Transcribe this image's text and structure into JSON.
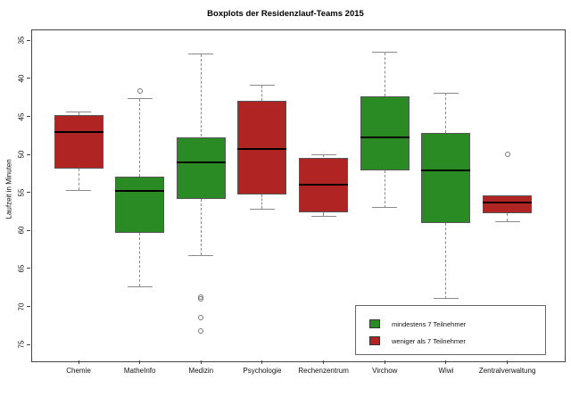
{
  "title": "Boxplots der Residenzlauf-Teams 2015",
  "chart_data": {
    "type": "boxplot",
    "title": "Boxplots der Residenzlauf-Teams 2015",
    "xlabel": "",
    "ylabel": "Laufzeit in Minuten",
    "ylim": [
      35,
      75
    ],
    "y_axis_inverted": true,
    "grid": false,
    "y_ticks": [
      "35",
      "40",
      "45",
      "50",
      "55",
      "60",
      "65",
      "70",
      "75"
    ],
    "categories": [
      "Chemie",
      "MatheInfo",
      "Medizin",
      "Psychologie",
      "Rechenzentrum",
      "Virchow",
      "Wiwi",
      "Zentralverwaltung"
    ],
    "colors": {
      "green": "#2A8B24",
      "red": "#B02424"
    },
    "boxes": [
      {
        "category": "Chemie",
        "group": "red",
        "whisker_min": 44.4,
        "q1": 44.8,
        "median": 47.1,
        "q3": 51.9,
        "whisker_max": 54.7,
        "outliers": []
      },
      {
        "category": "MatheInfo",
        "group": "green",
        "whisker_min": 42.7,
        "q1": 52.9,
        "median": 54.8,
        "q3": 60.3,
        "whisker_max": 67.4,
        "outliers": [
          41.7
        ]
      },
      {
        "category": "Medizin",
        "group": "green",
        "whisker_min": 36.8,
        "q1": 47.7,
        "median": 51.1,
        "q3": 55.9,
        "whisker_max": 63.3,
        "outliers": [
          68.8,
          69.0,
          71.5,
          73.2
        ]
      },
      {
        "category": "Psychologie",
        "group": "red",
        "whisker_min": 40.9,
        "q1": 43.0,
        "median": 49.3,
        "q3": 55.3,
        "whisker_max": 57.2,
        "outliers": []
      },
      {
        "category": "Rechenzentrum",
        "group": "red",
        "whisker_min": 50.1,
        "q1": 50.4,
        "median": 54.0,
        "q3": 57.6,
        "whisker_max": 58.2,
        "outliers": []
      },
      {
        "category": "Virchow",
        "group": "green",
        "whisker_min": 36.6,
        "q1": 42.4,
        "median": 47.7,
        "q3": 52.1,
        "whisker_max": 57.0,
        "outliers": []
      },
      {
        "category": "Wiwi",
        "group": "green",
        "whisker_min": 41.9,
        "q1": 47.2,
        "median": 52.1,
        "q3": 59.0,
        "whisker_max": 69.0,
        "outliers": []
      },
      {
        "category": "Zentralverwaltung",
        "group": "red",
        "whisker_min": 55.4,
        "q1": 55.4,
        "median": 56.3,
        "q3": 57.7,
        "whisker_max": 58.8,
        "outliers": [
          50.0
        ]
      }
    ],
    "legend": {
      "position": "bottom-right",
      "entries": [
        {
          "label": "mindestens 7 Teilnehmer",
          "color_key": "green"
        },
        {
          "label": "weniger als 7 Teilnehmer",
          "color_key": "red"
        }
      ]
    }
  }
}
